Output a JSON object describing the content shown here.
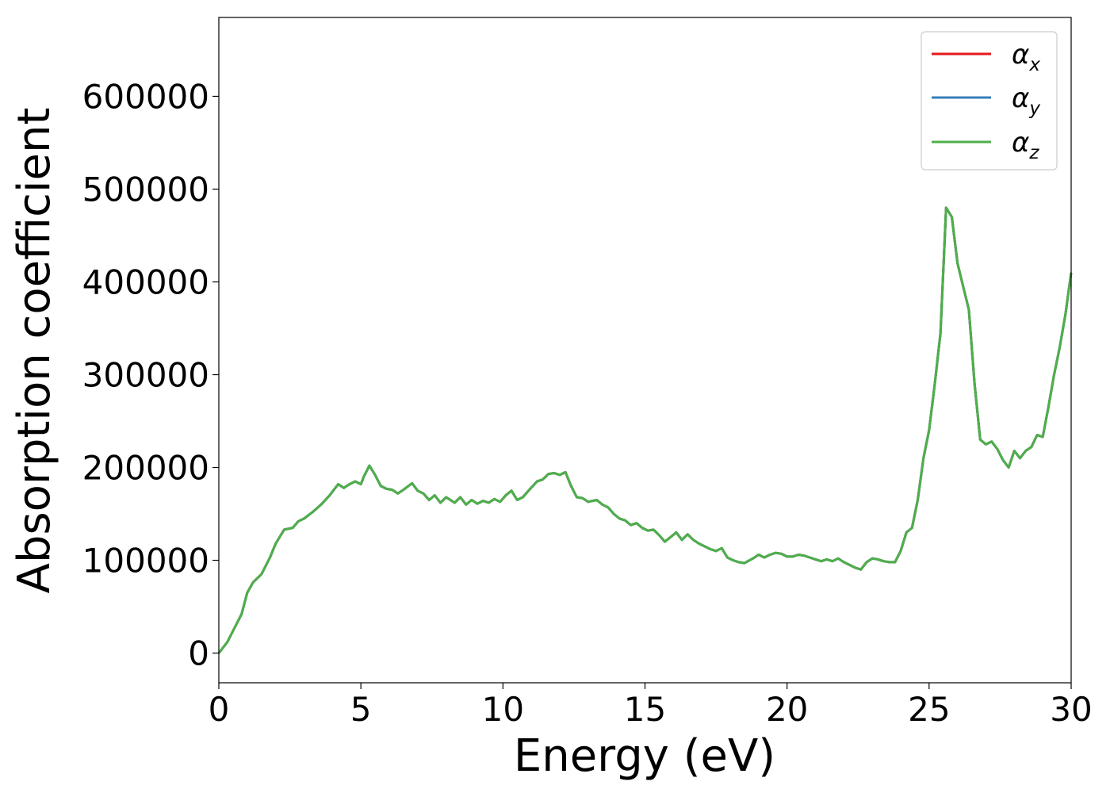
{
  "chart_data": {
    "type": "line",
    "xlabel": "Energy (eV)",
    "ylabel": "Absorption coefficient",
    "xlim": [
      0,
      30
    ],
    "ylim": [
      -32000,
      685000
    ],
    "x_ticks": [
      "0",
      "5",
      "10",
      "15",
      "20",
      "25",
      "30"
    ],
    "y_ticks": [
      "0",
      "100000",
      "200000",
      "300000",
      "400000",
      "500000",
      "600000"
    ],
    "grid": false,
    "legend_position": "top-right",
    "x": [
      0,
      0.3,
      0.6,
      0.8,
      1.0,
      1.2,
      1.5,
      1.8,
      2.0,
      2.3,
      2.6,
      2.8,
      3.0,
      3.3,
      3.6,
      3.9,
      4.2,
      4.4,
      4.6,
      4.8,
      5.0,
      5.1,
      5.3,
      5.5,
      5.7,
      5.9,
      6.1,
      6.3,
      6.5,
      6.8,
      7.0,
      7.2,
      7.4,
      7.6,
      7.8,
      8.0,
      8.3,
      8.5,
      8.7,
      8.9,
      9.1,
      9.3,
      9.5,
      9.7,
      9.9,
      10.1,
      10.3,
      10.5,
      10.7,
      10.9,
      11.2,
      11.4,
      11.6,
      11.8,
      12.0,
      12.2,
      12.4,
      12.6,
      12.8,
      13.0,
      13.3,
      13.5,
      13.7,
      13.9,
      14.1,
      14.3,
      14.5,
      14.7,
      14.9,
      15.1,
      15.3,
      15.5,
      15.7,
      15.9,
      16.1,
      16.3,
      16.5,
      16.7,
      16.9,
      17.1,
      17.3,
      17.5,
      17.7,
      17.9,
      18.1,
      18.3,
      18.5,
      18.8,
      19.0,
      19.2,
      19.4,
      19.6,
      19.8,
      20.0,
      20.2,
      20.4,
      20.6,
      20.8,
      21.0,
      21.2,
      21.4,
      21.6,
      21.8,
      22.0,
      22.2,
      22.4,
      22.6,
      22.8,
      23.0,
      23.2,
      23.4,
      23.6,
      23.8,
      24.0,
      24.2,
      24.4,
      24.6,
      24.8,
      25.0,
      25.2,
      25.4,
      25.6,
      25.8,
      26.0,
      26.2,
      26.4,
      26.6,
      26.8,
      27.0,
      27.2,
      27.4,
      27.6,
      27.8,
      28.0,
      28.2,
      28.4,
      28.6,
      28.8,
      29.0,
      29.2,
      29.4,
      29.6,
      29.8,
      30.0
    ],
    "series": [
      {
        "name": "α_x",
        "color": "#e41a1c",
        "y": [
          0,
          12000,
          30000,
          42000,
          65000,
          76000,
          85000,
          103000,
          118000,
          133000,
          135000,
          142000,
          145000,
          152000,
          160000,
          170000,
          182000,
          178000,
          182000,
          185000,
          182000,
          190000,
          202000,
          192000,
          180000,
          177000,
          176000,
          172000,
          176000,
          183000,
          175000,
          172000,
          165000,
          170000,
          162000,
          168000,
          162000,
          168000,
          160000,
          165000,
          161000,
          164000,
          162000,
          166000,
          163000,
          170000,
          175000,
          165000,
          168000,
          175000,
          185000,
          187000,
          193000,
          194000,
          192000,
          195000,
          180000,
          168000,
          167000,
          163000,
          165000,
          160000,
          157000,
          150000,
          145000,
          143000,
          138000,
          140000,
          135000,
          132000,
          133000,
          127000,
          120000,
          125000,
          130000,
          122000,
          128000,
          122000,
          118000,
          115000,
          112000,
          110000,
          113000,
          103000,
          100000,
          98000,
          97000,
          102000,
          106000,
          103000,
          106000,
          108000,
          107000,
          104000,
          104000,
          106000,
          105000,
          103000,
          101000,
          99000,
          101000,
          99000,
          102000,
          98000,
          95000,
          92000,
          90000,
          98000,
          102000,
          101000,
          99000,
          98000,
          98000,
          110000,
          130000,
          135000,
          165000,
          210000,
          240000,
          290000,
          345000,
          480000,
          470000,
          420000,
          395000,
          370000,
          290000,
          230000,
          225000,
          228000,
          220000,
          208000,
          200000,
          218000,
          210000,
          218000,
          222000,
          235000,
          233000,
          265000,
          300000,
          330000,
          365000,
          410000
        ]
      },
      {
        "name": "α_y",
        "color": "#377eb8",
        "y": [
          0,
          12000,
          30000,
          42000,
          65000,
          76000,
          85000,
          103000,
          118000,
          133000,
          135000,
          142000,
          145000,
          152000,
          160000,
          170000,
          182000,
          178000,
          182000,
          185000,
          182000,
          190000,
          202000,
          192000,
          180000,
          177000,
          176000,
          172000,
          176000,
          183000,
          175000,
          172000,
          165000,
          170000,
          162000,
          168000,
          162000,
          168000,
          160000,
          165000,
          161000,
          164000,
          162000,
          166000,
          163000,
          170000,
          175000,
          165000,
          168000,
          175000,
          185000,
          187000,
          193000,
          194000,
          192000,
          195000,
          180000,
          168000,
          167000,
          163000,
          165000,
          160000,
          157000,
          150000,
          145000,
          143000,
          138000,
          140000,
          135000,
          132000,
          133000,
          127000,
          120000,
          125000,
          130000,
          122000,
          128000,
          122000,
          118000,
          115000,
          112000,
          110000,
          113000,
          103000,
          100000,
          98000,
          97000,
          102000,
          106000,
          103000,
          106000,
          108000,
          107000,
          104000,
          104000,
          106000,
          105000,
          103000,
          101000,
          99000,
          101000,
          99000,
          102000,
          98000,
          95000,
          92000,
          90000,
          98000,
          102000,
          101000,
          99000,
          98000,
          98000,
          110000,
          130000,
          135000,
          165000,
          210000,
          240000,
          290000,
          345000,
          480000,
          470000,
          420000,
          395000,
          370000,
          290000,
          230000,
          225000,
          228000,
          220000,
          208000,
          200000,
          218000,
          210000,
          218000,
          222000,
          235000,
          233000,
          265000,
          300000,
          330000,
          365000,
          410000
        ]
      },
      {
        "name": "α_z",
        "color": "#4daf4a",
        "y": [
          0,
          12000,
          30000,
          42000,
          65000,
          76000,
          85000,
          103000,
          118000,
          133000,
          135000,
          142000,
          145000,
          152000,
          160000,
          170000,
          182000,
          178000,
          182000,
          185000,
          182000,
          190000,
          202000,
          192000,
          180000,
          177000,
          176000,
          172000,
          176000,
          183000,
          175000,
          172000,
          165000,
          170000,
          162000,
          168000,
          162000,
          168000,
          160000,
          165000,
          161000,
          164000,
          162000,
          166000,
          163000,
          170000,
          175000,
          165000,
          168000,
          175000,
          185000,
          187000,
          193000,
          194000,
          192000,
          195000,
          180000,
          168000,
          167000,
          163000,
          165000,
          160000,
          157000,
          150000,
          145000,
          143000,
          138000,
          140000,
          135000,
          132000,
          133000,
          127000,
          120000,
          125000,
          130000,
          122000,
          128000,
          122000,
          118000,
          115000,
          112000,
          110000,
          113000,
          103000,
          100000,
          98000,
          97000,
          102000,
          106000,
          103000,
          106000,
          108000,
          107000,
          104000,
          104000,
          106000,
          105000,
          103000,
          101000,
          99000,
          101000,
          99000,
          102000,
          98000,
          95000,
          92000,
          90000,
          98000,
          102000,
          101000,
          99000,
          98000,
          98000,
          110000,
          130000,
          135000,
          165000,
          210000,
          240000,
          290000,
          345000,
          480000,
          470000,
          420000,
          395000,
          370000,
          290000,
          230000,
          225000,
          228000,
          220000,
          208000,
          200000,
          218000,
          210000,
          218000,
          222000,
          235000,
          233000,
          265000,
          300000,
          330000,
          365000,
          410000
        ]
      }
    ]
  },
  "legend": {
    "entries": [
      {
        "base": "α",
        "sub": "x"
      },
      {
        "base": "α",
        "sub": "y"
      },
      {
        "base": "α",
        "sub": "z"
      }
    ]
  }
}
